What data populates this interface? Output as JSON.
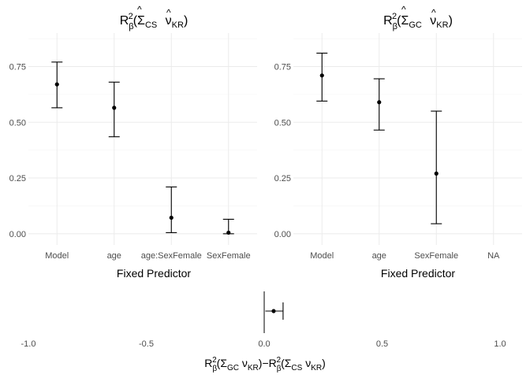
{
  "chart_data": [
    {
      "type": "errorbar",
      "title": {
        "base": "R",
        "sup": "2",
        "sub": "β",
        "sigma_sub": "CS",
        "nu_sub": "KR"
      },
      "xlabel": "Fixed Predictor",
      "ylabel": "",
      "ylim": [
        -0.05,
        0.9
      ],
      "yticks": [
        0,
        0.25,
        0.5,
        0.75
      ],
      "ytick_labels": [
        "0.00",
        "0.25",
        "0.50",
        "0.75"
      ],
      "grid": true,
      "categories": [
        "Model",
        "age",
        "age:SexFemale",
        "SexFemale"
      ],
      "points": [
        {
          "x": "Model",
          "y": 0.67,
          "lower": 0.565,
          "upper": 0.77
        },
        {
          "x": "age",
          "y": 0.565,
          "lower": 0.435,
          "upper": 0.68
        },
        {
          "x": "age:SexFemale",
          "y": 0.072,
          "lower": 0.005,
          "upper": 0.21
        },
        {
          "x": "SexFemale",
          "y": 0.005,
          "lower": 0.0,
          "upper": 0.065
        }
      ]
    },
    {
      "type": "errorbar",
      "title": {
        "base": "R",
        "sup": "2",
        "sub": "β",
        "sigma_sub": "GC",
        "nu_sub": "KR"
      },
      "xlabel": "Fixed Predictor",
      "ylabel": "",
      "ylim": [
        -0.05,
        0.9
      ],
      "yticks": [
        0,
        0.25,
        0.5,
        0.75
      ],
      "ytick_labels": [
        "0.00",
        "0.25",
        "0.50",
        "0.75"
      ],
      "grid": true,
      "categories": [
        "Model",
        "age",
        "SexFemale",
        "NA"
      ],
      "points": [
        {
          "x": "Model",
          "y": 0.71,
          "lower": 0.595,
          "upper": 0.81
        },
        {
          "x": "age",
          "y": 0.59,
          "lower": 0.465,
          "upper": 0.695
        },
        {
          "x": "SexFemale",
          "y": 0.27,
          "lower": 0.045,
          "upper": 0.55
        }
      ]
    },
    {
      "type": "errorbar-horizontal",
      "xlabel": {
        "left": {
          "sigma_sub": "GC",
          "nu_sub": "KR"
        },
        "operator": "−",
        "right": {
          "sigma_sub": "CS",
          "nu_sub": "KR"
        }
      },
      "xlim": [
        -1.0,
        1.0
      ],
      "xticks": [
        -1.0,
        -0.5,
        0,
        0.5,
        1.0
      ],
      "xtick_labels": [
        "-1.0",
        "-0.5",
        "0.0",
        "0.5",
        "1.0"
      ],
      "grid": false,
      "reference_line_x": 0,
      "points": [
        {
          "x": 0.04,
          "lower": 0.005,
          "upper": 0.08
        }
      ]
    }
  ]
}
